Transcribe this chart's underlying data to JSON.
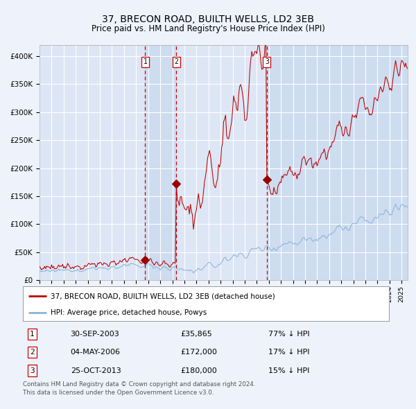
{
  "title": "37, BRECON ROAD, BUILTH WELLS, LD2 3EB",
  "subtitle": "Price paid vs. HM Land Registry's House Price Index (HPI)",
  "title_fontsize": 10,
  "subtitle_fontsize": 8.5,
  "ylim": [
    0,
    420000
  ],
  "yticks": [
    0,
    50000,
    100000,
    150000,
    200000,
    250000,
    300000,
    350000,
    400000
  ],
  "ytick_labels": [
    "£0",
    "£50K",
    "£100K",
    "£150K",
    "£200K",
    "£250K",
    "£300K",
    "£350K",
    "£400K"
  ],
  "background_color": "#eef2fb",
  "plot_bg_color": "#dde6f5",
  "grid_color": "#ffffff",
  "hpi_line_color": "#8ab4d8",
  "price_line_color": "#bb0000",
  "sale_marker_color": "#990000",
  "vline_color": "#cc0000",
  "shade_color": "#c8d8ee",
  "sale1_year": 2003.75,
  "sale2_year": 2006.33,
  "sale3_year": 2013.83,
  "sale1_price": 35865,
  "sale2_price": 172000,
  "sale3_price": 180000,
  "xmin": 1995.0,
  "xmax": 2025.5,
  "legend_entries": [
    "37, BRECON ROAD, BUILTH WELLS, LD2 3EB (detached house)",
    "HPI: Average price, detached house, Powys"
  ],
  "table_rows": [
    [
      "1",
      "30-SEP-2003",
      "£35,865",
      "77% ↓ HPI"
    ],
    [
      "2",
      "04-MAY-2006",
      "£172,000",
      "17% ↓ HPI"
    ],
    [
      "3",
      "25-OCT-2013",
      "£180,000",
      "15% ↓ HPI"
    ]
  ],
  "footer": "Contains HM Land Registry data © Crown copyright and database right 2024.\nThis data is licensed under the Open Government Licence v3.0."
}
